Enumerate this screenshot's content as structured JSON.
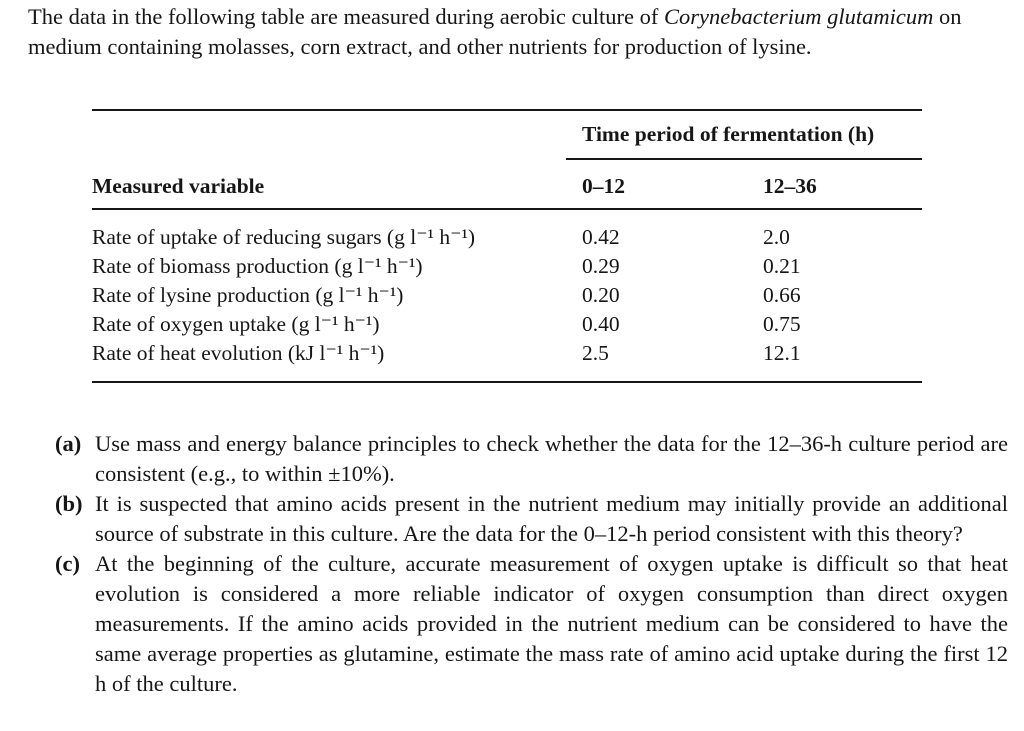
{
  "intro": {
    "part1": "The data in the following table are measured during aerobic culture of ",
    "species": "Corynebacterium glutamicum",
    "part2": " on medium containing molasses, corn extract, and other nutrients for production of lysine."
  },
  "table": {
    "group_header": "Time period of fermentation (h)",
    "row_header": "Measured variable",
    "col_headers": [
      "0–12",
      "12–36"
    ],
    "rows": [
      {
        "variable": "Rate of uptake of reducing sugars (g l⁻¹ h⁻¹)",
        "period1": "0.42",
        "period2": "2.0"
      },
      {
        "variable": "Rate of biomass production (g l⁻¹ h⁻¹)",
        "period1": "0.29",
        "period2": "0.21"
      },
      {
        "variable": "Rate of lysine production (g l⁻¹ h⁻¹)",
        "period1": "0.20",
        "period2": "0.66"
      },
      {
        "variable": "Rate of oxygen uptake (g l⁻¹ h⁻¹)",
        "period1": "0.40",
        "period2": "0.75"
      },
      {
        "variable": "Rate of heat evolution (kJ l⁻¹ h⁻¹)",
        "period1": "2.5",
        "period2": "12.1"
      }
    ]
  },
  "questions": [
    {
      "label": "(a)",
      "text": "Use mass and energy balance principles to check whether the data for the 12–36-h culture period are consistent (e.g., to within ±10%)."
    },
    {
      "label": "(b)",
      "text": "It is suspected that amino acids present in the nutrient medium may initially provide an additional source of substrate in this culture. Are the data for the 0–12-h period consistent with this theory?"
    },
    {
      "label": "(c)",
      "text": "At the beginning of the culture, accurate measurement of oxygen uptake is difficult so that heat evolution is considered a more reliable indicator of oxygen consumption than direct oxygen measurements. If the amino acids provided in the nutrient medium can be considered to have the same average properties as glutamine, estimate the mass rate of amino acid uptake during the first 12 h of the culture."
    }
  ],
  "colors": {
    "text": "#161616",
    "background": "#ffffff",
    "rule": "#161616"
  }
}
